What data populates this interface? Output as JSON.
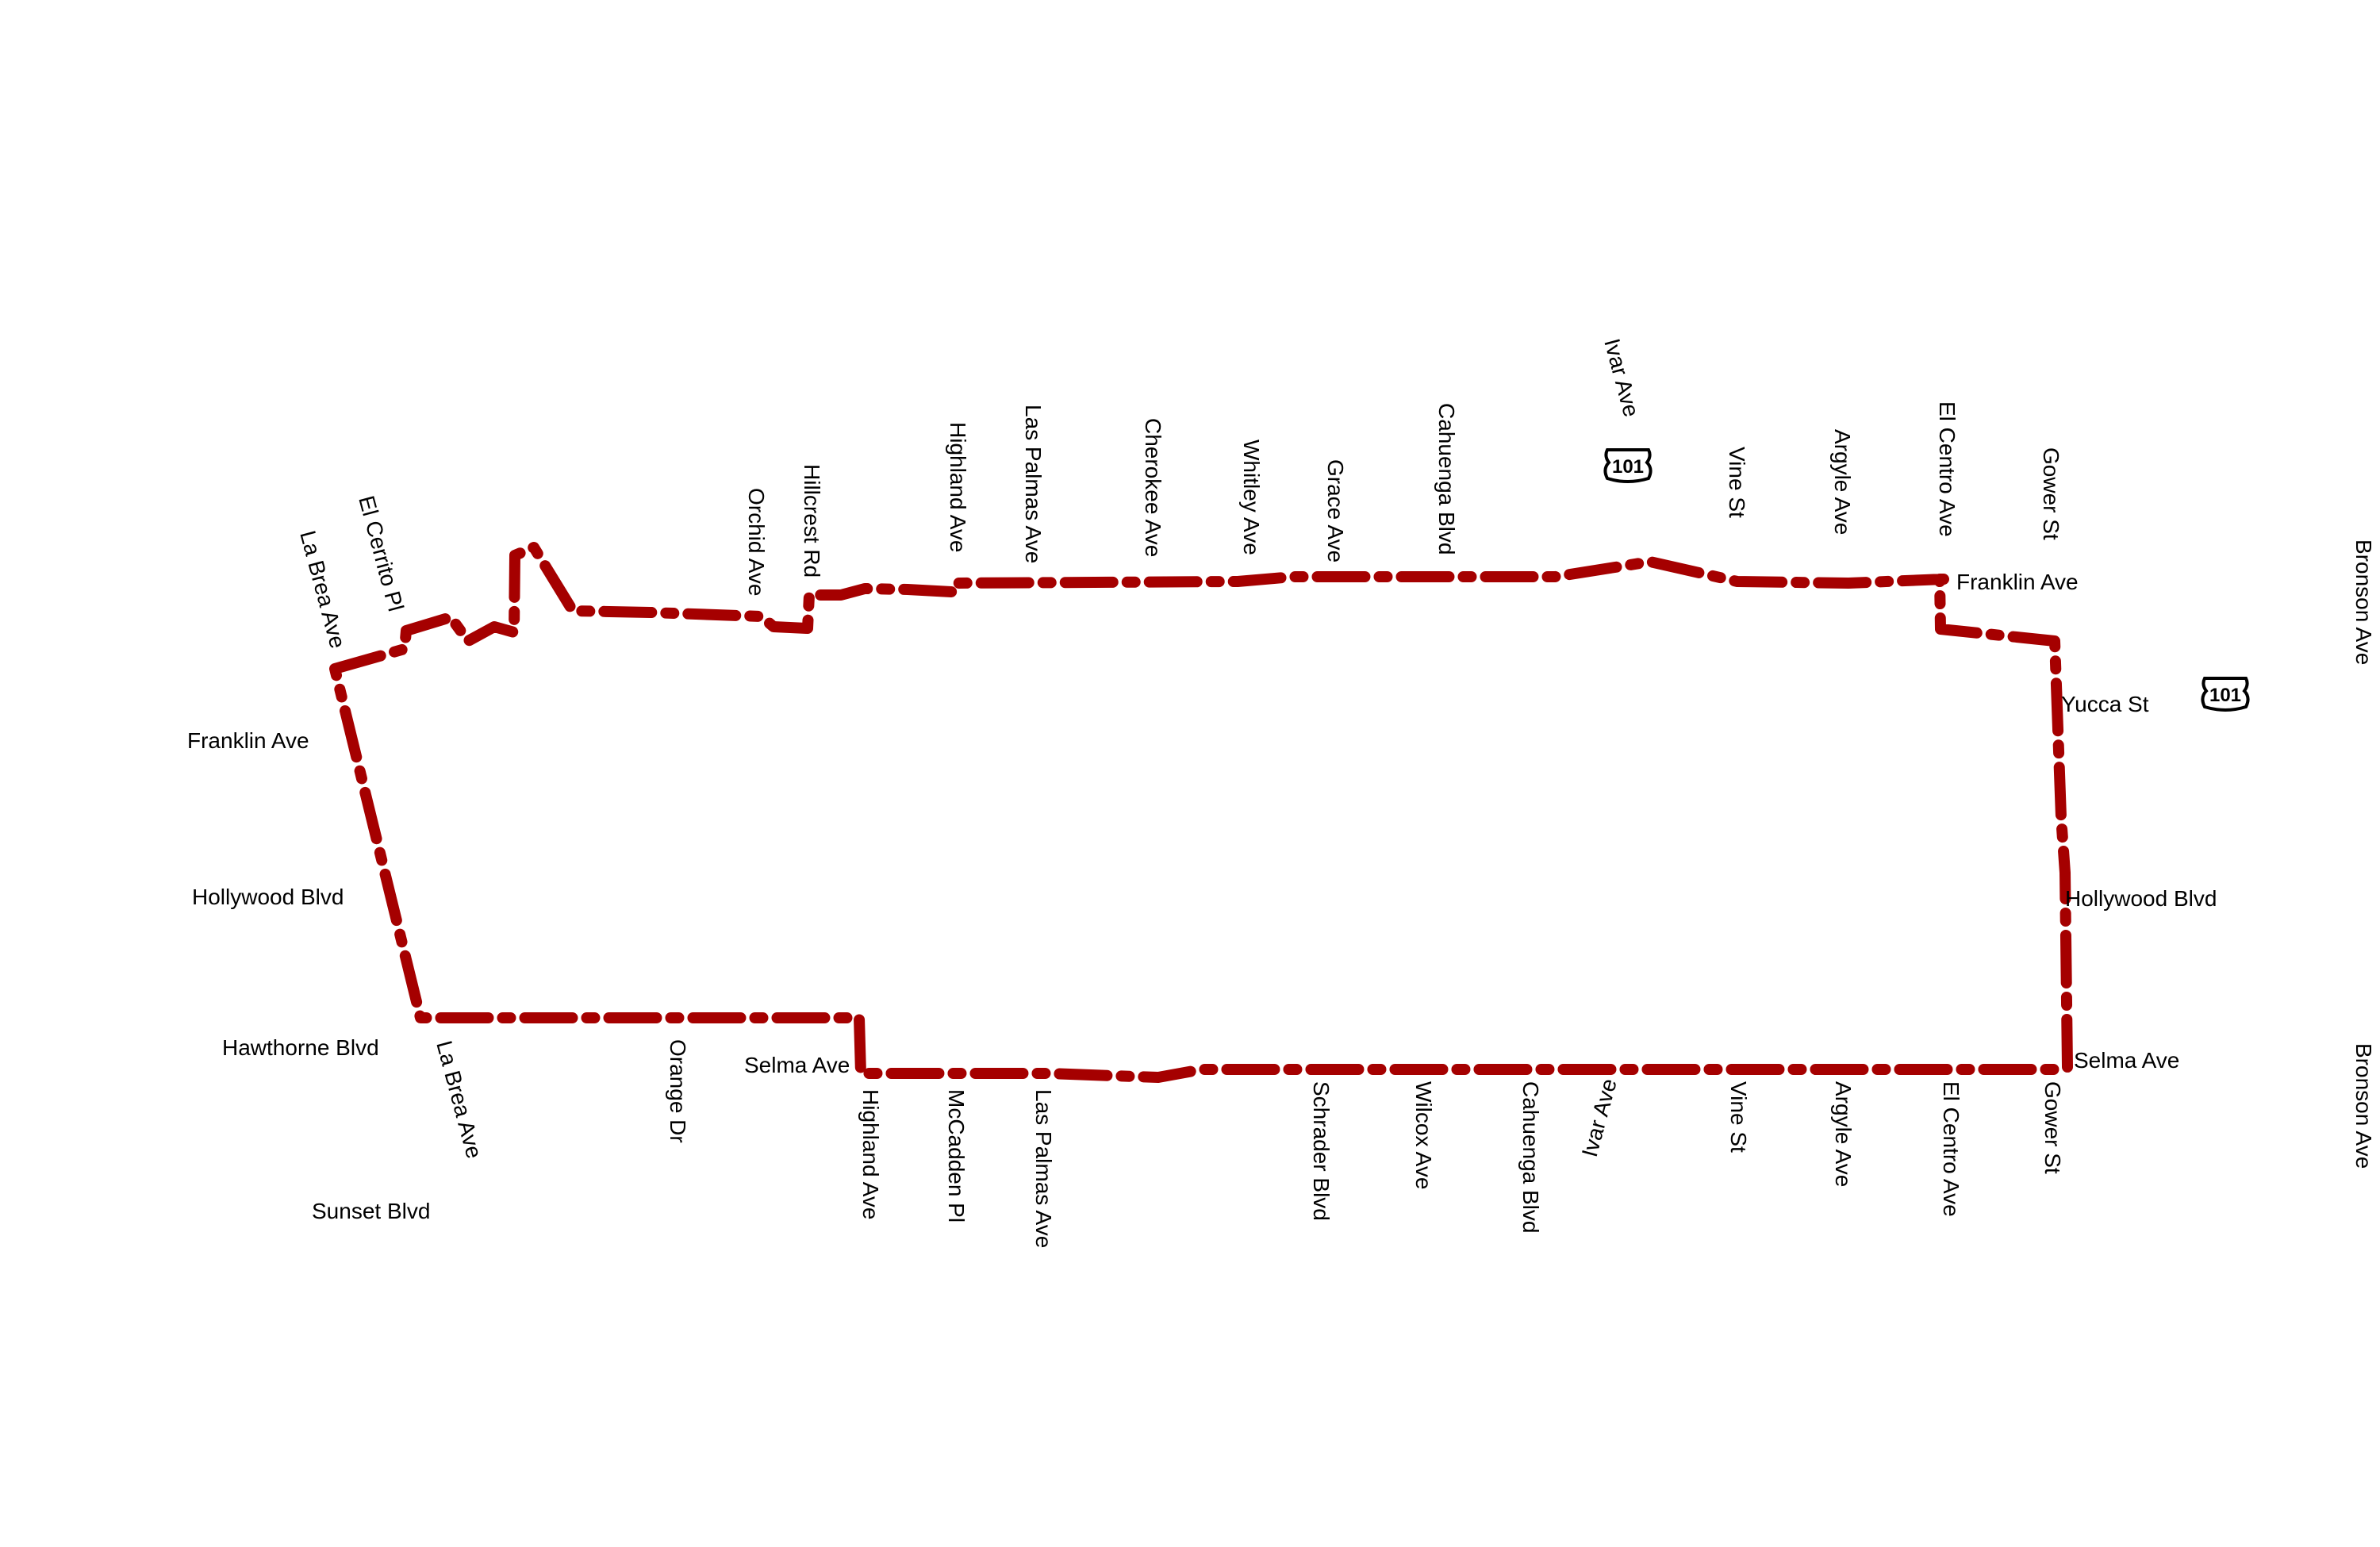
{
  "colors": {
    "route": "#a50000",
    "background": "#ffffff",
    "label": "#000000"
  },
  "shields": {
    "north": "101",
    "east": "101"
  },
  "labels": {
    "north": {
      "la_brea": "La Brea Ave",
      "el_cerrito": "El Cerrito Pl",
      "orchid": "Orchid Ave",
      "hillcrest": "Hillcrest Rd",
      "highland": "Highland Ave",
      "las_palmas": "Las Palmas Ave",
      "cherokee": "Cherokee Ave",
      "whitley": "Whitley Ave",
      "grace": "Grace Ave",
      "cahuenga": "Cahuenga Blvd",
      "ivar": "Ivar Ave",
      "vine": "Vine St",
      "argyle": "Argyle Ave",
      "el_centro": "El Centro Ave",
      "gower": "Gower St",
      "bronson": "Bronson Ave"
    },
    "west": {
      "franklin": "Franklin Ave",
      "hollywood": "Hollywood Blvd",
      "hawthorne": "Hawthorne Blvd",
      "sunset": "Sunset Blvd"
    },
    "east": {
      "franklin": "Franklin Ave",
      "yucca": "Yucca St",
      "hollywood": "Hollywood Blvd",
      "selma": "Selma Ave"
    },
    "south": {
      "la_brea": "La Brea Ave",
      "orange": "Orange Dr",
      "selma": "Selma Ave",
      "highland": "Highland Ave",
      "mccadden": "McCadden Pl",
      "las_palmas": "Las Palmas Ave",
      "schrader": "Schrader Blvd",
      "wilcox": "Wilcox Ave",
      "cahuenga": "Cahuenga Blvd",
      "ivar": "Ivar Ave",
      "vine": "Vine St",
      "argyle": "Argyle Ave",
      "el_centro": "El Centro Ave",
      "gower": "Gower St",
      "bronson": "Bronson Ave"
    }
  }
}
